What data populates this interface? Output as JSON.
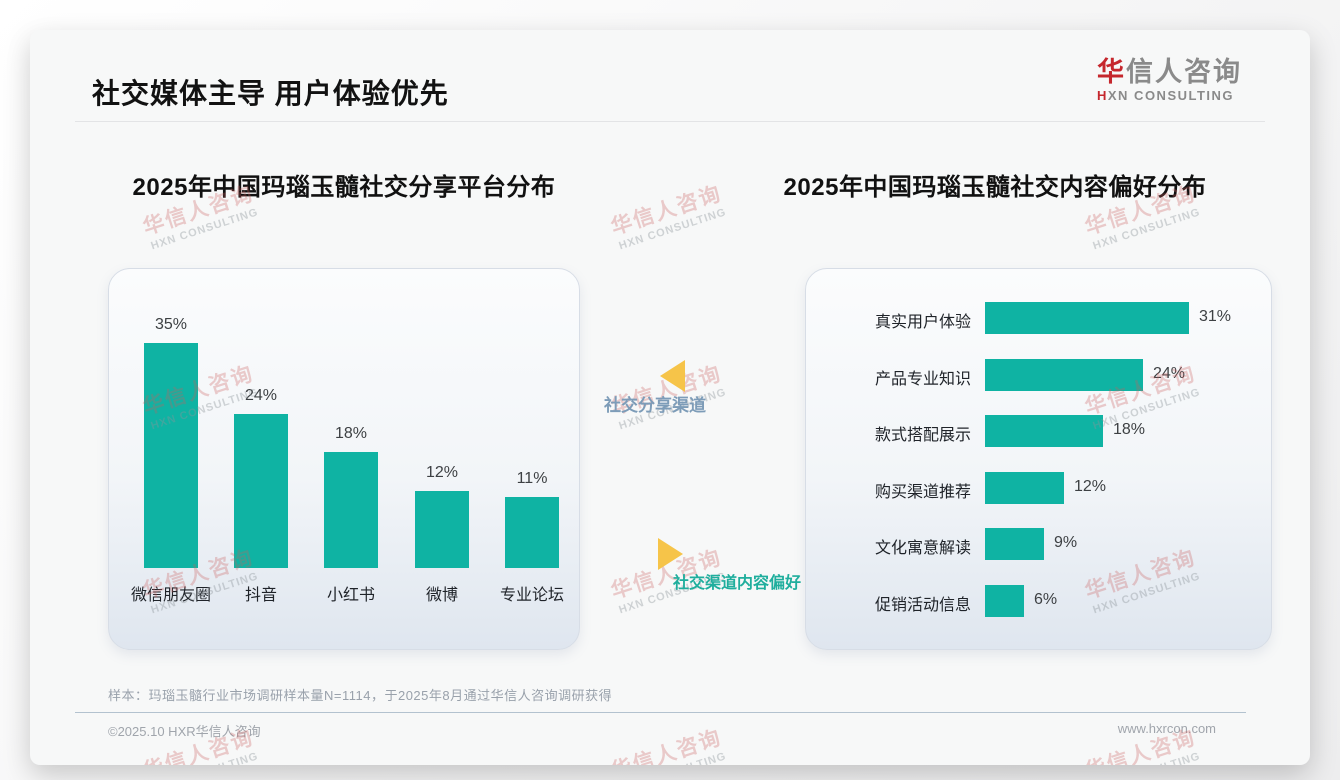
{
  "page": {
    "title": "社交媒体主导 用户体验优先",
    "logo": {
      "zh_accent": "华",
      "zh_rest": "信人咨询",
      "en_accent": "H",
      "en_rest": "XN CONSULTING"
    },
    "watermark": {
      "zh": "华信人咨询",
      "en": "HXN CONSULTING"
    },
    "middle": {
      "label_top": "社交分享渠道",
      "label_bottom": "社交渠道内容偏好",
      "label_top_color": "#7d9cb8",
      "label_bottom_color": "#1fae9d",
      "arrow_color": "#f6c449"
    },
    "footnote": "样本：玛瑙玉髓行业市场调研样本量N=1114，于2025年8月通过华信人咨询调研获得",
    "footer": {
      "left": "©2025.10 HXR华信人咨询",
      "right": "www.hxrcon.com"
    },
    "accent_color": "#0fb3a3",
    "logo_accent_color": "#c5272d"
  },
  "chart_data": [
    {
      "type": "bar",
      "orientation": "vertical",
      "title": "2025年中国玛瑙玉髓社交分享平台分布",
      "categories": [
        "微信朋友圈",
        "抖音",
        "小红书",
        "微博",
        "专业论坛"
      ],
      "values": [
        35,
        24,
        18,
        12,
        11
      ],
      "data_labels": [
        "35%",
        "24%",
        "18%",
        "12%",
        "11%"
      ],
      "unit": "%",
      "ylim": [
        0,
        40
      ],
      "grid": false,
      "bar_color": "#0fb3a3"
    },
    {
      "type": "bar",
      "orientation": "horizontal",
      "title": "2025年中国玛瑙玉髓社交内容偏好分布",
      "categories": [
        "真实用户体验",
        "产品专业知识",
        "款式搭配展示",
        "购买渠道推荐",
        "文化寓意解读",
        "促销活动信息"
      ],
      "values": [
        31,
        24,
        18,
        12,
        9,
        6
      ],
      "data_labels": [
        "31%",
        "24%",
        "18%",
        "12%",
        "9%",
        "6%"
      ],
      "unit": "%",
      "xlim": [
        0,
        35
      ],
      "grid": false,
      "bar_color": "#0fb3a3"
    }
  ]
}
